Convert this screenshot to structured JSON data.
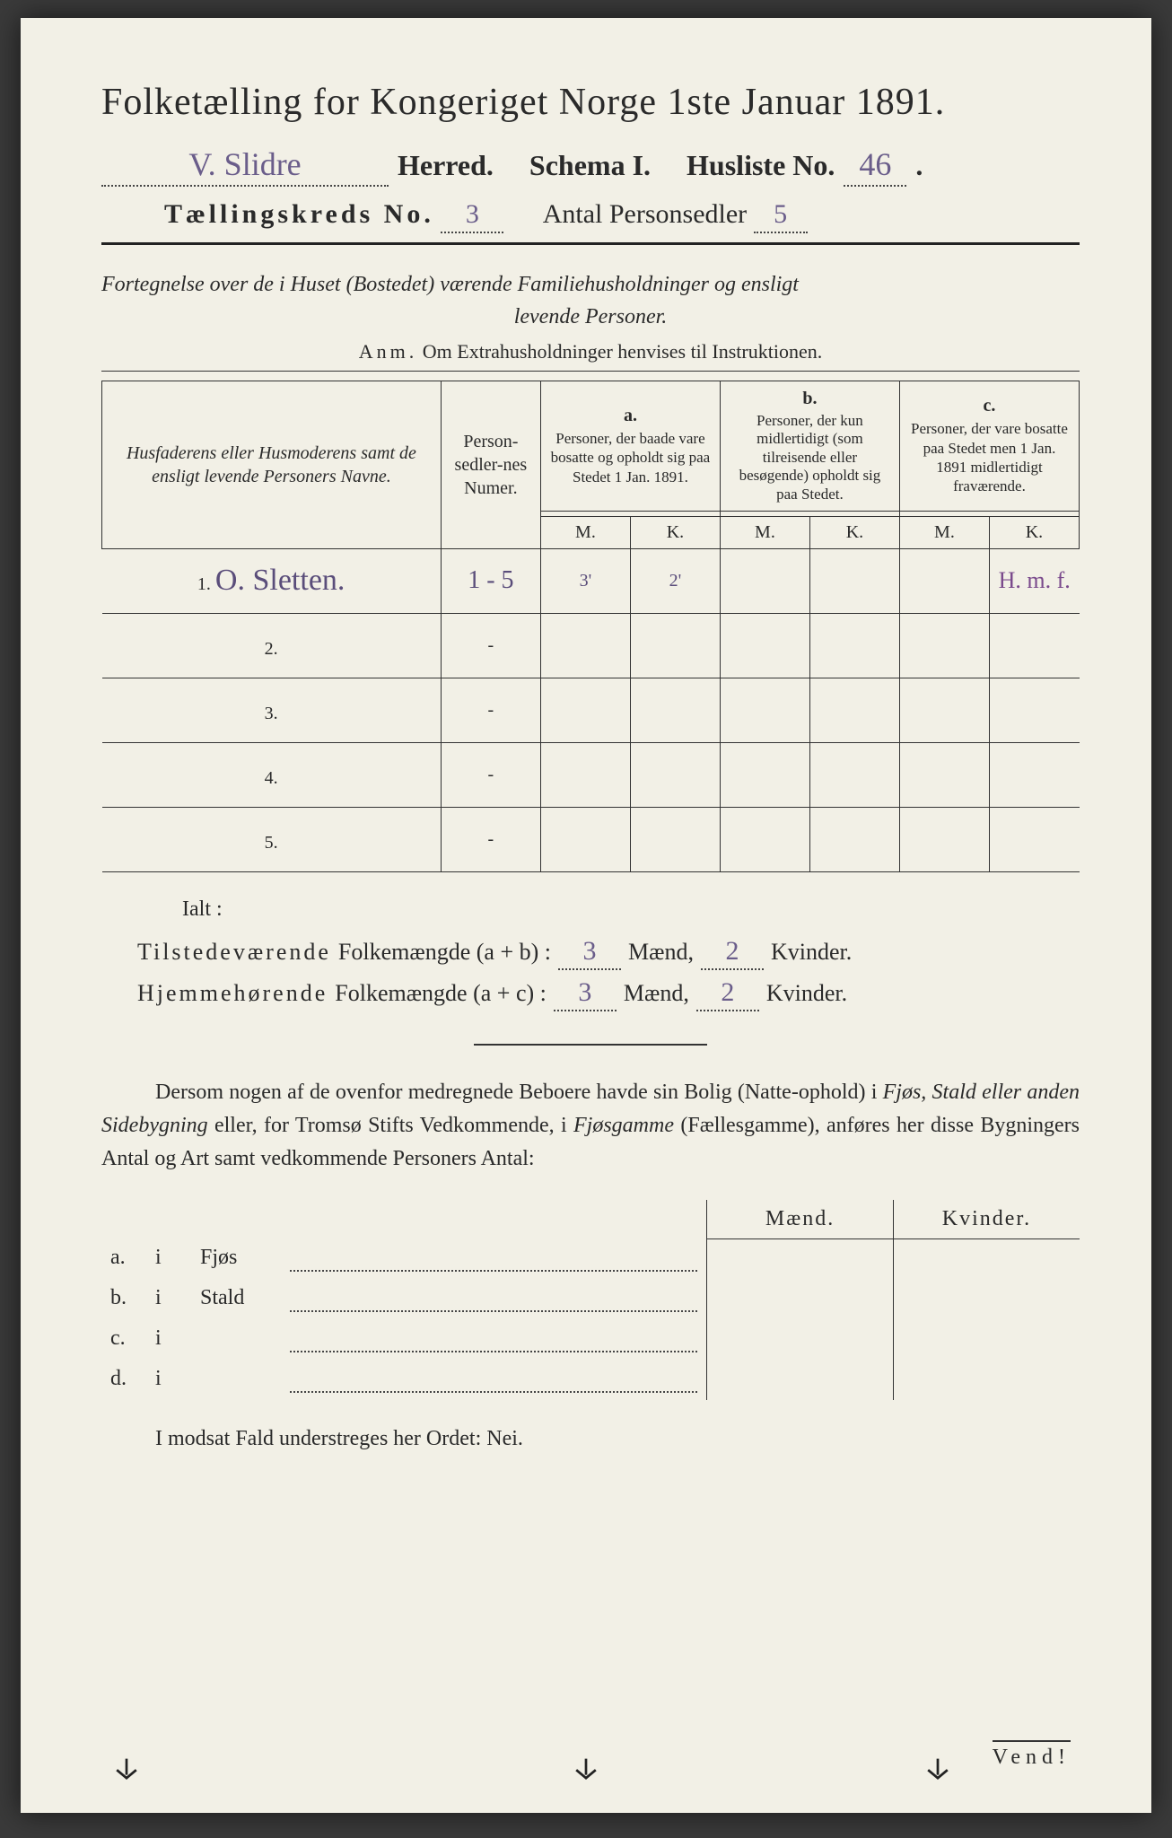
{
  "colors": {
    "paper": "#f2f0e6",
    "ink": "#2a2a2a",
    "handwriting": "#6a5d8a",
    "purple_note": "#7a4a8c",
    "border": "#333333"
  },
  "title": "Folketælling for Kongeriget Norge 1ste Januar 1891.",
  "line2": {
    "herred_value": "V. Slidre",
    "herred_label": "Herred.",
    "schema_label": "Schema I.",
    "husliste_label": "Husliste No.",
    "husliste_value": "46"
  },
  "line3": {
    "kreds_label": "Tællingskreds No.",
    "kreds_value": "3",
    "antal_label": "Antal Personsedler",
    "antal_value": "5"
  },
  "intro_line1": "Fortegnelse over de i Huset (Bostedet) værende Familiehusholdninger og ensligt",
  "intro_line2": "levende Personer.",
  "anm_label": "Anm.",
  "anm_text": "Om Extrahusholdninger henvises til Instruktionen.",
  "table": {
    "head_name": "Husfaderens eller Husmoderens samt de ensligt levende Personers Navne.",
    "head_num": "Person-sedler-nes Numer.",
    "head_a_key": "a.",
    "head_a": "Personer, der baade vare bosatte og opholdt sig paa Stedet 1 Jan. 1891.",
    "head_b_key": "b.",
    "head_b": "Personer, der kun midlertidigt (som tilreisende eller besøgende) opholdt sig paa Stedet.",
    "head_c_key": "c.",
    "head_c": "Personer, der vare bosatte paa Stedet men 1 Jan. 1891 midlertidigt fraværende.",
    "m": "M.",
    "k": "K.",
    "rows": [
      {
        "n": "1.",
        "name": "O. Sletten.",
        "num": "1 - 5",
        "a_m": "3'",
        "a_k": "2'",
        "b_m": "",
        "b_k": "",
        "c_m": "",
        "c_k": "H. m. f."
      },
      {
        "n": "2.",
        "name": "",
        "num": "-",
        "a_m": "",
        "a_k": "",
        "b_m": "",
        "b_k": "",
        "c_m": "",
        "c_k": ""
      },
      {
        "n": "3.",
        "name": "",
        "num": "-",
        "a_m": "",
        "a_k": "",
        "b_m": "",
        "b_k": "",
        "c_m": "",
        "c_k": ""
      },
      {
        "n": "4.",
        "name": "",
        "num": "-",
        "a_m": "",
        "a_k": "",
        "b_m": "",
        "b_k": "",
        "c_m": "",
        "c_k": ""
      },
      {
        "n": "5.",
        "name": "",
        "num": "-",
        "a_m": "",
        "a_k": "",
        "b_m": "",
        "b_k": "",
        "c_m": "",
        "c_k": ""
      }
    ]
  },
  "ialt": "Ialt :",
  "sum1": {
    "label": "Tilstedeværende",
    "label2": "Folkemængde (a + b) :",
    "m": "3",
    "mw": "Mænd,",
    "k": "2",
    "kw": "Kvinder."
  },
  "sum2": {
    "label": "Hjemmehørende",
    "label2": "Folkemængde (a + c) :",
    "m": "3",
    "mw": "Mænd,",
    "k": "2",
    "kw": "Kvinder."
  },
  "para": "Dersom nogen af de ovenfor medregnede Beboere havde sin Bolig (Natteophold) i Fjøs, Stald eller anden Sidebygning eller, for Tromsø Stifts Vedkommende, i Fjøsgamme (Fællesgamme), anføres her disse Bygningers Antal og Art samt vedkommende Personers Antal:",
  "sub": {
    "maend": "Mænd.",
    "kvinder": "Kvinder.",
    "rows": [
      {
        "key": "a.",
        "i": "i",
        "label": "Fjøs"
      },
      {
        "key": "b.",
        "i": "i",
        "label": "Stald"
      },
      {
        "key": "c.",
        "i": "i",
        "label": ""
      },
      {
        "key": "d.",
        "i": "i",
        "label": ""
      }
    ]
  },
  "final": "I modsat Fald understreges her Ordet: Nei.",
  "vend": "Vend!"
}
